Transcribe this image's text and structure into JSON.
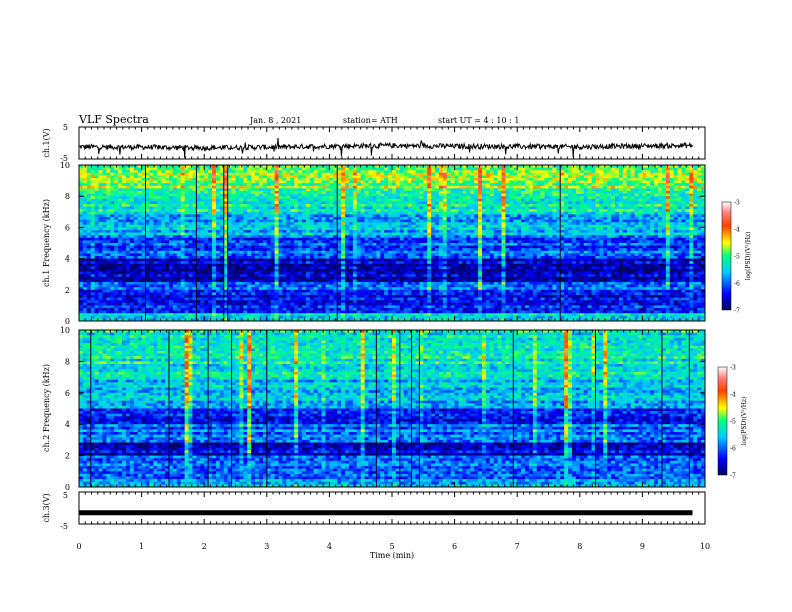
{
  "header": {
    "title": "VLF Spectra",
    "date": "Jan. 8 , 2021",
    "station": "station= ATH",
    "start": "start UT = 4 : 10 : 1"
  },
  "chart_data": [
    {
      "type": "line",
      "panel": "ch1-voltage",
      "ylabel": "ch.1(V)",
      "ylim": [
        -5,
        5
      ],
      "ytick_labels": [
        "5",
        "-5"
      ],
      "x": [
        0,
        1,
        2,
        3,
        4,
        5,
        6,
        7,
        8,
        9,
        9.8
      ],
      "values": [
        -1.2,
        -1.3,
        -1.5,
        -1.3,
        -1.0,
        -0.8,
        -1.0,
        -1.1,
        -1.2,
        -0.9,
        -0.8
      ],
      "color": "#000000"
    },
    {
      "type": "heatmap",
      "panel": "ch1-spectrogram",
      "ylabel": "ch.1 Frequency (kHz)",
      "ylim": [
        0,
        10
      ],
      "ytick_labels": [
        "0",
        "2",
        "4",
        "6",
        "8",
        "10"
      ],
      "colorbar": {
        "label": "log(PSD)(V²/Hz)",
        "range": [
          -7,
          -3
        ],
        "tick_labels": [
          "-3",
          "-4",
          "-5",
          "-6",
          "-7"
        ]
      },
      "bands": [
        {
          "freq_khz": [
            0,
            0.5
          ],
          "log_psd": -5.4
        },
        {
          "freq_khz": [
            0.5,
            1.0
          ],
          "log_psd": -6.2
        },
        {
          "freq_khz": [
            1.0,
            2.0
          ],
          "log_psd": -6.5
        },
        {
          "freq_khz": [
            2.0,
            2.5
          ],
          "log_psd": -5.8
        },
        {
          "freq_khz": [
            2.5,
            4.0
          ],
          "log_psd": -6.7
        },
        {
          "freq_khz": [
            4.0,
            5.5
          ],
          "log_psd": -6.1
        },
        {
          "freq_khz": [
            5.5,
            7.0
          ],
          "log_psd": -5.6
        },
        {
          "freq_khz": [
            7.0,
            8.5
          ],
          "log_psd": -5.2
        },
        {
          "freq_khz": [
            8.5,
            10.0
          ],
          "log_psd": -4.8
        }
      ]
    },
    {
      "type": "heatmap",
      "panel": "ch2-spectrogram",
      "ylabel": "ch.2 Frequency (kHz)",
      "ylim": [
        0,
        10
      ],
      "ytick_labels": [
        "0",
        "2",
        "4",
        "6",
        "8",
        "10"
      ],
      "colorbar": {
        "label": "log(PSD)(V²/Hz)",
        "range": [
          -7,
          -3
        ],
        "tick_labels": [
          "-3",
          "-4",
          "-5",
          "-6",
          "-7"
        ]
      },
      "bands": [
        {
          "freq_khz": [
            0,
            0.5
          ],
          "log_psd": -5.6
        },
        {
          "freq_khz": [
            0.5,
            1.0
          ],
          "log_psd": -6.2
        },
        {
          "freq_khz": [
            1.0,
            2.0
          ],
          "log_psd": -6.0
        },
        {
          "freq_khz": [
            2.0,
            2.8
          ],
          "log_psd": -6.6
        },
        {
          "freq_khz": [
            2.8,
            4.0
          ],
          "log_psd": -6.0
        },
        {
          "freq_khz": [
            4.0,
            5.0
          ],
          "log_psd": -6.3
        },
        {
          "freq_khz": [
            5.0,
            7.0
          ],
          "log_psd": -5.6
        },
        {
          "freq_khz": [
            7.0,
            10.0
          ],
          "log_psd": -5.3
        }
      ]
    },
    {
      "type": "line",
      "panel": "ch3-voltage",
      "ylabel": "ch.3(V)",
      "ylim": [
        -5,
        5
      ],
      "ytick_labels": [
        "5",
        "-5"
      ],
      "x": [
        0,
        9.8
      ],
      "values": [
        -1.5,
        -1.5
      ],
      "color": "#000000"
    }
  ],
  "xaxis": {
    "label": "Time (min)",
    "xlim": [
      0,
      10
    ],
    "tick_labels": [
      "0",
      "1",
      "2",
      "3",
      "4",
      "5",
      "6",
      "7",
      "8",
      "9",
      "10"
    ]
  },
  "colors": {
    "scale": [
      "#00008b",
      "#0000ff",
      "#00c8ff",
      "#00ff80",
      "#ffff00",
      "#ff8000",
      "#ff0000",
      "#ffffff"
    ]
  }
}
